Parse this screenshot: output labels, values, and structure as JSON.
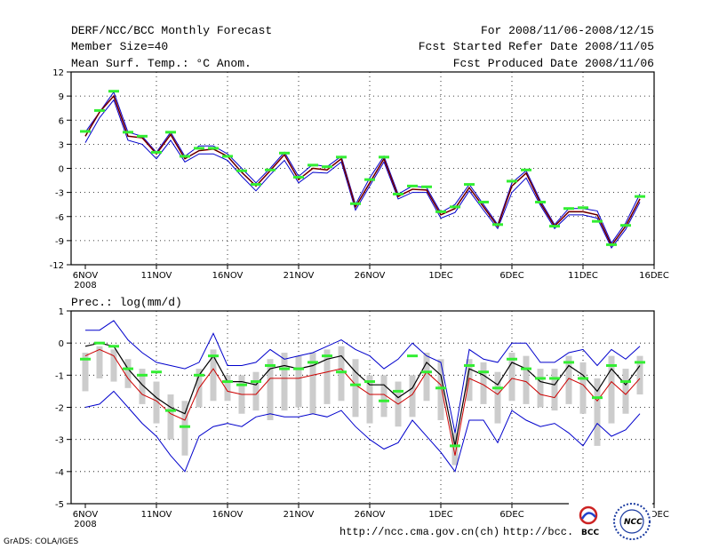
{
  "header": {
    "title": "DERF/NCC/BCC Monthly Forecast",
    "member": "Member Size=40",
    "variable": "Mean Surf. Temp.: °C Anom.",
    "period": "For 2008/11/06-2008/12/15",
    "refer": "Fcst Started Refer Date 2008/11/05",
    "produced": "Fcst Produced Date 2008/11/06"
  },
  "colors": {
    "ensemble_mean": "#cc0000",
    "median": "#000000",
    "spread": "#0000cc",
    "observed": "#33ee33",
    "box": "#cccccc"
  },
  "chart_data": [
    {
      "type": "line",
      "title": "Mean Surf. Temp.: °C Anom.",
      "ylim": [
        -12,
        12
      ],
      "yticks": [
        "12",
        "9",
        "6",
        "3",
        "0",
        "-3",
        "-6",
        "-9",
        "-12"
      ],
      "xticks": [
        "6NOV",
        "11NOV",
        "16NOV",
        "21NOV",
        "26NOV",
        "1DEC",
        "6DEC",
        "11DEC",
        "16DEC"
      ],
      "xticks_sub": "2008",
      "x_days": [
        1,
        2,
        3,
        4,
        5,
        6,
        7,
        8,
        9,
        10,
        11,
        12,
        13,
        14,
        15,
        16,
        17,
        18,
        19,
        20,
        21,
        22,
        23,
        24,
        25,
        26,
        27,
        28,
        29,
        30,
        31,
        32,
        33,
        34,
        35,
        36,
        37,
        38,
        39,
        40
      ],
      "series": [
        {
          "name": "upper",
          "values": [
            4.5,
            7,
            9.5,
            4.5,
            4,
            2,
            4.5,
            1.5,
            2.8,
            2.8,
            1.8,
            0,
            -1.8,
            0,
            2,
            -1,
            0.5,
            0.2,
            1.5,
            -4.5,
            -1.2,
            1.5,
            -3.2,
            -2.2,
            -2.4,
            -5.5,
            -4.5,
            -2,
            -4.5,
            -7,
            -1.8,
            -0.3,
            -4,
            -7,
            -5,
            -5,
            -5.3,
            -9.3,
            -6.8,
            -3.2
          ]
        },
        {
          "name": "mean",
          "values": [
            4,
            7,
            9,
            4,
            3.8,
            1.8,
            4.2,
            1.2,
            2.2,
            2.4,
            1.5,
            -0.5,
            -2.2,
            -0.3,
            1.7,
            -1.4,
            0,
            -0.2,
            1.2,
            -4.8,
            -1.8,
            1.2,
            -3.5,
            -2.6,
            -2.7,
            -5.8,
            -5,
            -2.4,
            -4.8,
            -7.2,
            -2.2,
            -0.6,
            -4.3,
            -7.2,
            -5.4,
            -5.4,
            -5.8,
            -9.6,
            -7.2,
            -3.8
          ]
        },
        {
          "name": "lower",
          "values": [
            3.2,
            6.3,
            8.5,
            3.5,
            3,
            1.2,
            3.5,
            0.8,
            1.8,
            1.8,
            1,
            -1,
            -2.8,
            -0.8,
            1,
            -1.8,
            -0.5,
            -0.6,
            0.8,
            -5.2,
            -2.2,
            0.8,
            -3.8,
            -3,
            -3,
            -6.2,
            -5.5,
            -2.8,
            -5.2,
            -7.5,
            -3,
            -1.2,
            -4.6,
            -7.5,
            -5.8,
            -5.8,
            -6.2,
            -9.9,
            -7.6,
            -4.2
          ]
        },
        {
          "name": "observed",
          "values": [
            4.6,
            7.2,
            9.6,
            4.5,
            4,
            2,
            4.5,
            1.5,
            2.5,
            2.5,
            1.5,
            -0.3,
            -2,
            -0.2,
            1.9,
            -1.1,
            0.4,
            0.2,
            1.4,
            -4.4,
            -1.4,
            1.4,
            -3.2,
            -2.2,
            -2.3,
            -5.4,
            -4.8,
            -2,
            -4.2,
            -7,
            -1.6,
            -0.2,
            -4.2,
            -7.2,
            -5,
            -4.9,
            -6.6,
            -9.5,
            -7.1,
            -3.5
          ]
        }
      ]
    },
    {
      "type": "line",
      "title": "Prec.: log(mm/d)",
      "ylim": [
        -5,
        1
      ],
      "yticks": [
        "1",
        "0",
        "-1",
        "-2",
        "-3",
        "-4",
        "-5"
      ],
      "xticks": [
        "6NOV",
        "11NOV",
        "16NOV",
        "21NOV",
        "26NOV",
        "1DEC",
        "6DEC",
        "11DEC",
        "16DEC"
      ],
      "xticks_sub": "2008",
      "series": [
        {
          "name": "upper",
          "values": [
            0.4,
            0.4,
            0.7,
            0.1,
            -0.3,
            -0.6,
            -0.7,
            -0.8,
            -0.6,
            0.3,
            -0.7,
            -0.7,
            -0.6,
            -0.2,
            -0.5,
            -0.4,
            -0.3,
            -0.1,
            0.1,
            -0.2,
            -0.4,
            -0.8,
            -0.5,
            0,
            -0.4,
            -0.6,
            -2.8,
            -0.2,
            -0.5,
            -0.6,
            0,
            0,
            -0.6,
            -0.6,
            -0.3,
            -0.2,
            -0.7,
            -0.2,
            -0.5,
            -0.1
          ]
        },
        {
          "name": "median",
          "values": [
            -0.1,
            0,
            -0.1,
            -0.8,
            -1.3,
            -1.7,
            -2,
            -2.2,
            -1,
            -0.4,
            -1.2,
            -1.2,
            -1.3,
            -0.8,
            -0.7,
            -0.8,
            -0.7,
            -0.5,
            -0.4,
            -0.9,
            -1.3,
            -1.3,
            -1.7,
            -1.4,
            -0.6,
            -1,
            -3.2,
            -0.8,
            -1,
            -1.3,
            -0.6,
            -0.8,
            -1.2,
            -1.3,
            -0.7,
            -1,
            -1.5,
            -0.8,
            -1.3,
            -0.7
          ]
        },
        {
          "name": "mean",
          "values": [
            -0.4,
            -0.2,
            -0.4,
            -1.1,
            -1.6,
            -1.8,
            -2.2,
            -2.4,
            -1.4,
            -0.8,
            -1.5,
            -1.6,
            -1.6,
            -1.1,
            -1.1,
            -1.1,
            -1,
            -0.9,
            -0.8,
            -1.3,
            -1.6,
            -1.6,
            -1.9,
            -1.6,
            -0.9,
            -1.3,
            -3.5,
            -1.1,
            -1.3,
            -1.6,
            -1.1,
            -1.2,
            -1.6,
            -1.7,
            -1.1,
            -1.3,
            -1.8,
            -1.2,
            -1.6,
            -1.1
          ]
        },
        {
          "name": "lower",
          "values": [
            -2,
            -1.9,
            -1.5,
            -2,
            -2.5,
            -2.9,
            -3.5,
            -4,
            -2.9,
            -2.6,
            -2.5,
            -2.6,
            -2.3,
            -2.2,
            -2.3,
            -2.3,
            -2.2,
            -2.3,
            -2.1,
            -2.6,
            -3,
            -3.3,
            -3.1,
            -2.4,
            -2.9,
            -3.4,
            -4,
            -2.4,
            -2.4,
            -3.1,
            -2.1,
            -2.4,
            -2.6,
            -2.5,
            -2.8,
            -3.2,
            -2.5,
            -2.9,
            -2.7,
            -2.2
          ]
        },
        {
          "name": "observed",
          "values": [
            -0.5,
            0,
            -0.1,
            -0.8,
            -1,
            -0.9,
            -2.1,
            -2.6,
            -1,
            -0.4,
            -1.2,
            -1.3,
            -1.2,
            -0.7,
            -0.8,
            -0.8,
            -0.6,
            -0.4,
            -0.9,
            -1.3,
            -1.2,
            -1.8,
            -1.5,
            -0.4,
            -0.9,
            -1.4,
            -3.2,
            -0.7,
            -0.9,
            -1.4,
            -0.5,
            -0.8,
            -1.1,
            -1.1,
            -0.6,
            -1.1,
            -1.7,
            -0.7,
            -1.2,
            -0.6
          ]
        },
        {
          "name": "box_top",
          "values": [
            -0.3,
            -0.1,
            -0.2,
            -0.5,
            -0.8,
            -1.2,
            -1.6,
            -1.8,
            -0.8,
            -0.2,
            -1,
            -1,
            -0.9,
            -0.5,
            -0.3,
            -0.4,
            -0.3,
            -0.2,
            -0.1,
            -0.5,
            -1,
            -1,
            -1.2,
            -1,
            -0.3,
            -0.5,
            -2.8,
            -0.5,
            -0.6,
            -0.9,
            -0.3,
            -0.4,
            -0.8,
            -0.8,
            -0.4,
            -0.6,
            -1.1,
            -0.4,
            -0.8,
            -0.4
          ]
        },
        {
          "name": "box_bottom",
          "values": [
            -1.5,
            -1.1,
            -1.2,
            -1.4,
            -1.9,
            -2.5,
            -3,
            -3.5,
            -2,
            -1.8,
            -1.8,
            -2.2,
            -2.1,
            -2.4,
            -2.1,
            -2,
            -2.2,
            -1.9,
            -1.8,
            -2.3,
            -2.5,
            -2.3,
            -2.6,
            -2.3,
            -1.8,
            -2.4,
            -3.8,
            -1.8,
            -1.9,
            -2.5,
            -1.8,
            -1.9,
            -2,
            -2.1,
            -1.9,
            -2.2,
            -3.2,
            -2.5,
            -2.2,
            -1.6
          ]
        }
      ]
    }
  ],
  "footer": {
    "grads": "GrADS: COLA/IGES",
    "url1": "http://ncc.cma.gov.cn(ch)",
    "url2": "http://bcc.",
    "logo_bcc": "BCC",
    "logo_ncc": "NCC"
  }
}
